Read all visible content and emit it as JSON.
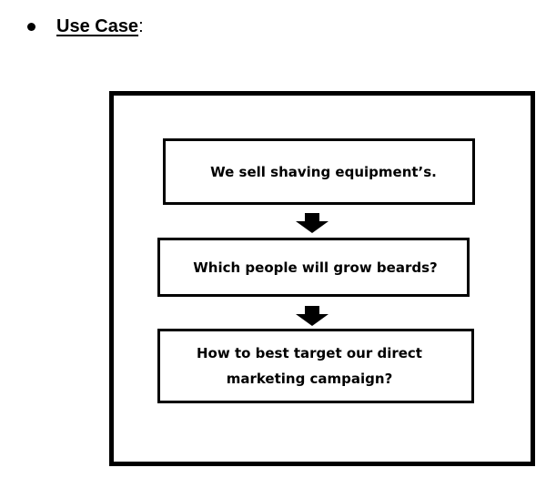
{
  "heading": {
    "text": "Use Case",
    "suffix": ":"
  },
  "steps": [
    {
      "text": "We sell shaving equipment’s."
    },
    {
      "text": "Which people will grow beards?"
    },
    {
      "text": "How to best target our direct\nmarketing campaign?"
    }
  ],
  "icons": {
    "bullet": "bullet-dot-icon",
    "connector": "arrow-down-icon"
  },
  "colors": {
    "foreground": "#000000",
    "background": "#ffffff"
  }
}
